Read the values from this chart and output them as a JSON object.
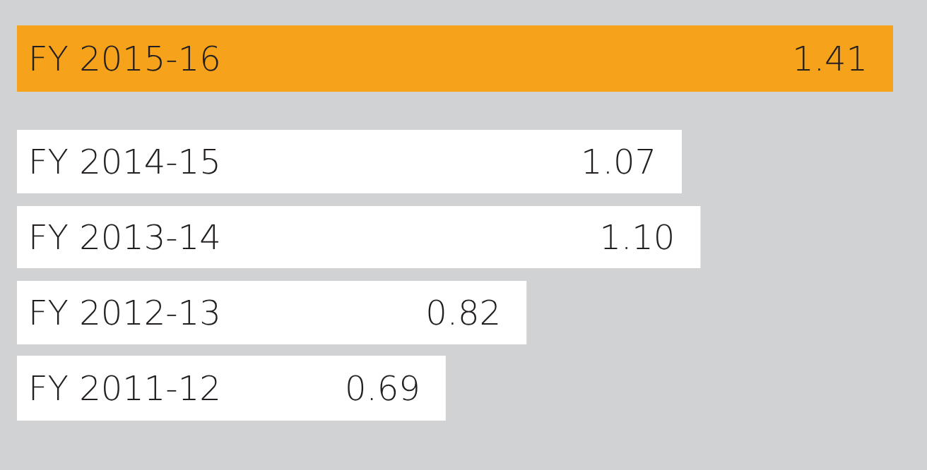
{
  "chart_data": {
    "type": "bar",
    "orientation": "horizontal",
    "categories": [
      "FY 2015-16",
      "FY 2014-15",
      "FY 2013-14",
      "FY 2012-13",
      "FY 2011-12"
    ],
    "values": [
      1.41,
      1.07,
      1.1,
      0.82,
      0.69
    ],
    "value_labels": [
      "1.41",
      "1.07",
      "1.10",
      "0.82",
      "0.69"
    ],
    "colors": [
      "#f7a21b",
      "#ffffff",
      "#ffffff",
      "#ffffff",
      "#ffffff"
    ]
  }
}
